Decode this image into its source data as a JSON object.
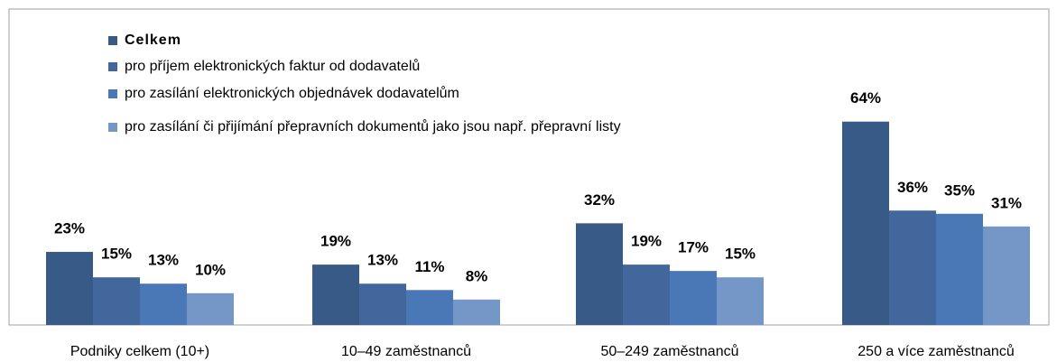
{
  "chart_data": {
    "type": "bar",
    "categories": [
      "Podniky celkem (10+)",
      "10–49 zaměstnanců",
      "50–249 zaměstnanců",
      "250 a více zaměstnanců"
    ],
    "series": [
      {
        "name": "Celkem",
        "color": "#375a87",
        "values": [
          23,
          19,
          32,
          64
        ],
        "value_labels": [
          "23%",
          "19%",
          "32%",
          "64%"
        ]
      },
      {
        "name": "pro příjem elektronických faktur od dodavatelů",
        "color": "#41679d",
        "values": [
          15,
          13,
          19,
          36
        ],
        "value_labels": [
          "15%",
          "13%",
          "19%",
          "36%"
        ]
      },
      {
        "name": "pro zasílání elektronických objednávek dodavatelům",
        "color": "#4a78b6",
        "values": [
          13,
          11,
          17,
          35
        ],
        "value_labels": [
          "13%",
          "11%",
          "17%",
          "35%"
        ]
      },
      {
        "name": "pro zasílání či přijímání přepravních dokumentů jako jsou např. přepravní listy",
        "color": "#7497c7",
        "values": [
          10,
          8,
          15,
          31
        ],
        "value_labels": [
          "10%",
          "8%",
          "15%",
          "31%"
        ]
      }
    ],
    "legend": "top-left"
  }
}
